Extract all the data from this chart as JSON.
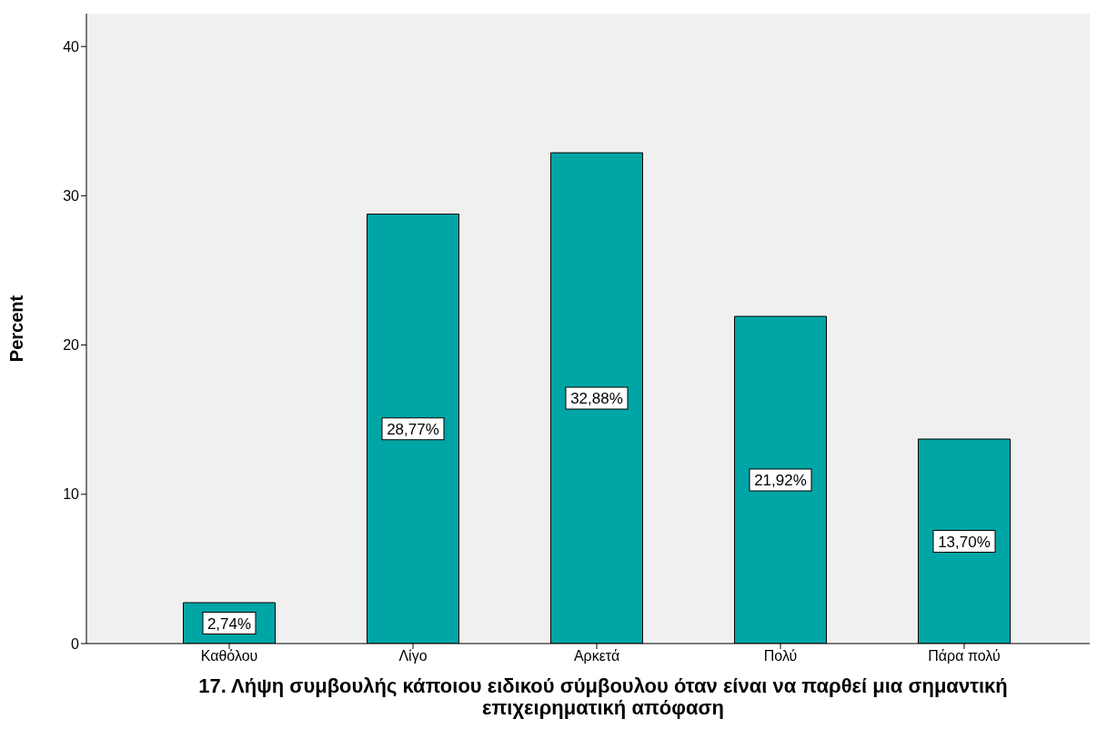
{
  "chart_data": {
    "type": "bar",
    "xlabel": "17. Λήψη συμβουλής κάποιου ειδικού σύμβουλου όταν είναι να παρθεί μια σημαντική επιχειρηματική απόφαση",
    "ylabel": "Percent",
    "categories": [
      "Καθόλου",
      "Λίγο",
      "Αρκετά",
      "Πολύ",
      "Πάρα πολύ"
    ],
    "values": [
      2.74,
      28.77,
      32.88,
      21.92,
      13.7
    ],
    "value_labels": [
      "2,74%",
      "28,77%",
      "32,88%",
      "21,92%",
      "13,70%"
    ],
    "color": "#00a5a5",
    "ylim": [
      0,
      42.2
    ],
    "yticks": [
      0,
      10,
      20,
      30,
      40
    ],
    "grid": false
  }
}
